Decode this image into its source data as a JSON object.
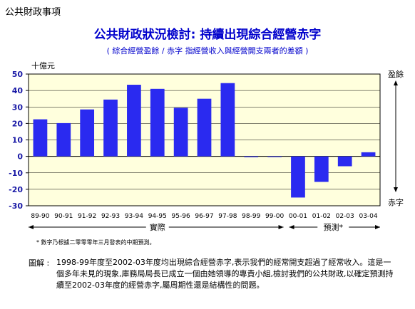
{
  "header": "公共財政事項",
  "chart_data": {
    "type": "bar",
    "title": "公共財政狀況檢討: 持續出現綜合經營赤字",
    "subtitle": "( 綜合經營盈餘 / 赤字 指經營收入與經營開支兩者的差額 )",
    "ylabel": "十億元",
    "ylim": [
      -30,
      50
    ],
    "yticks": [
      -30,
      -20,
      -10,
      0,
      10,
      20,
      30,
      40,
      50
    ],
    "categories": [
      "89-90",
      "90-91",
      "91-92",
      "92-93",
      "93-94",
      "94-95",
      "95-96",
      "96-97",
      "97-98",
      "98-99",
      "99-00",
      "00-01",
      "01-02",
      "02-03",
      "03-04"
    ],
    "values": [
      22.5,
      20.2,
      28.5,
      34.5,
      43.5,
      41,
      29.5,
      35,
      44.5,
      -0.5,
      -0.3,
      -25,
      -15.5,
      -6,
      2.5
    ],
    "bar_color": "#2a2af0",
    "surplus_label": "盈餘",
    "deficit_label": "赤字",
    "actual_label": "實際",
    "forecast_label": "預測*",
    "footnote": "* 數字乃根據二零零零年三月發表的中期預測。"
  },
  "caption_head": "圖解 :",
  "caption": "1998-99年度至2002-03年度均出現綜合經營赤字,表示我們的經常開支超過了經常收入。這是一個多年未見的現象,庫務局局長已成立一個由她領導的專責小組,檢討我們的公共財政,以確定預測持續至2002-03年度的經營赤字,屬周期性還是結構性的問題。"
}
